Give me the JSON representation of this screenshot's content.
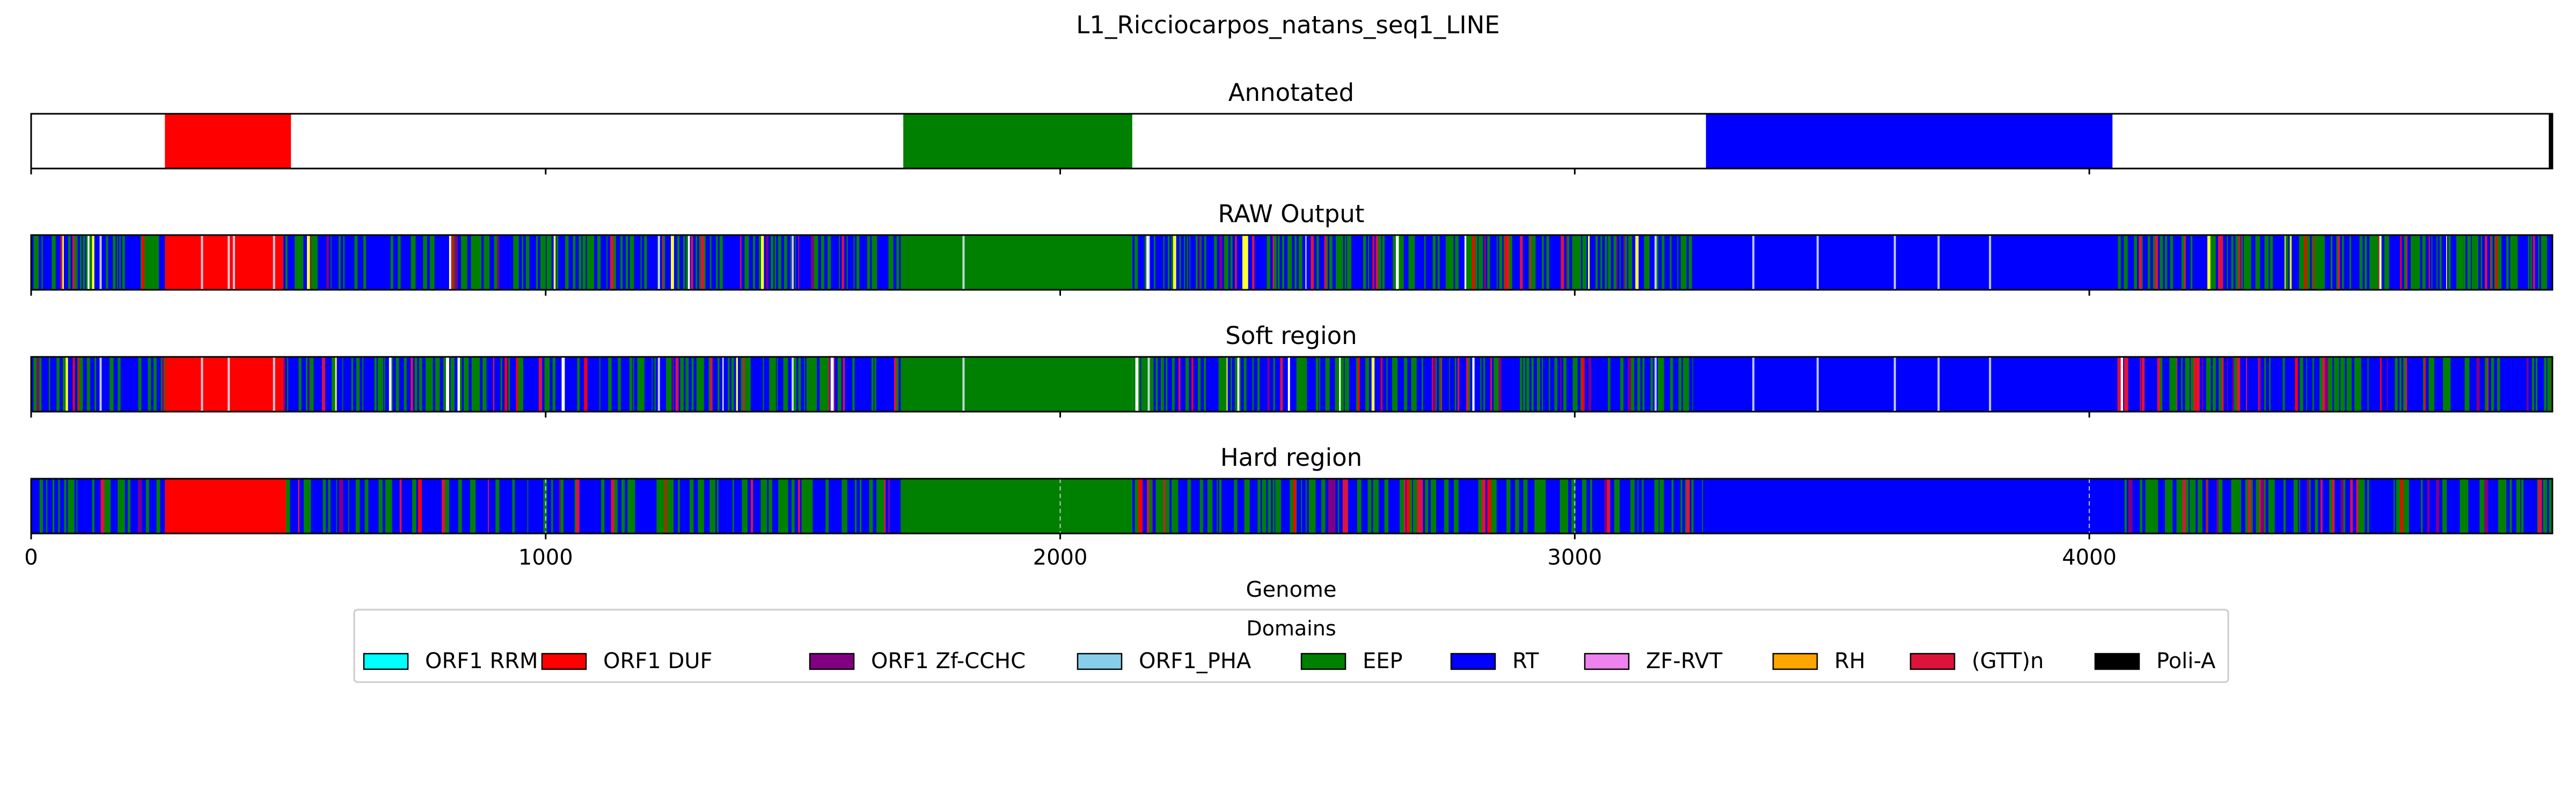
{
  "figure": {
    "title": "L1_Ricciocarpos_natans_seq1_LINE"
  },
  "chart_data": {
    "type": "heatmap",
    "title": "L1_Ricciocarpos_natans_seq1_LINE",
    "xlabel": "Genome",
    "ylabel": "",
    "xlim": [
      0,
      4900
    ],
    "xticks": [
      0,
      1000,
      2000,
      3000,
      4000
    ],
    "grid": "x-only, dashed, bottom panel",
    "legend": {
      "title": "Domains",
      "placement": "below-center",
      "entries": [
        {
          "label": "ORF1 RRM",
          "color": "#00ffff"
        },
        {
          "label": "ORF1 DUF",
          "color": "#ff0000"
        },
        {
          "label": "ORF1 Zf-CCHC",
          "color": "#800080"
        },
        {
          "label": "ORF1_PHA",
          "color": "#87ceeb"
        },
        {
          "label": "EEP",
          "color": "#008000"
        },
        {
          "label": "RT",
          "color": "#0000ff"
        },
        {
          "label": "ZF-RVT",
          "color": "#ee82ee"
        },
        {
          "label": "RH",
          "color": "#ffa500"
        },
        {
          "label": "(GTT)n",
          "color": "#dc143c"
        },
        {
          "label": "Poli-A",
          "color": "#000000"
        }
      ]
    },
    "panels": [
      {
        "name": "Annotated",
        "segments": [
          {
            "domain": "ORF1 DUF",
            "start": 260,
            "end": 505
          },
          {
            "domain": "EEP",
            "start": 1695,
            "end": 2140
          },
          {
            "domain": "RT",
            "start": 3255,
            "end": 4045
          },
          {
            "domain": "Poli-A",
            "start": 4893,
            "end": 4900
          }
        ]
      },
      {
        "name": "RAW Output",
        "base_segments": [
          {
            "domain": "ORF1 DUF",
            "start": 260,
            "end": 490
          },
          {
            "domain": "EEP",
            "start": 1690,
            "end": 2140
          },
          {
            "domain": "RT",
            "start": 3230,
            "end": 4050
          }
        ],
        "mixed_regions": [
          [
            0,
            260
          ],
          [
            490,
            1690
          ],
          [
            2140,
            3230
          ],
          [
            4050,
            4900
          ]
        ],
        "gaps": [
          133,
          330,
          382,
          392,
          470,
          1218,
          1478,
          1810,
          2170,
          3155,
          3345,
          3470,
          3620,
          3705,
          3805
        ]
      },
      {
        "name": "Soft region",
        "base_segments": [
          {
            "domain": "ORF1 DUF",
            "start": 260,
            "end": 490
          },
          {
            "domain": "EEP",
            "start": 1690,
            "end": 2140
          },
          {
            "domain": "RT",
            "start": 3230,
            "end": 4050
          }
        ],
        "mixed_regions": [
          [
            0,
            260
          ],
          [
            490,
            1690
          ],
          [
            2140,
            3230
          ],
          [
            4050,
            4900
          ]
        ],
        "gaps": [
          133,
          330,
          382,
          470,
          1218,
          1478,
          1810,
          2170,
          3155,
          3345,
          3470,
          3620,
          3705,
          3805
        ]
      },
      {
        "name": "Hard region",
        "base_segments": [
          {
            "domain": "ORF1 DUF",
            "start": 260,
            "end": 495
          },
          {
            "domain": "EEP",
            "start": 1690,
            "end": 2140
          },
          {
            "domain": "RT",
            "start": 3260,
            "end": 4050
          }
        ],
        "mixed_regions": [
          [
            0,
            260
          ],
          [
            495,
            1690
          ],
          [
            2140,
            3260
          ],
          [
            4050,
            4900
          ]
        ],
        "gaps": []
      }
    ]
  }
}
